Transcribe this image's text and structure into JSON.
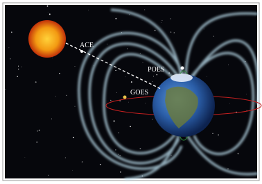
{
  "labels": {
    "ace": "ACE",
    "poes": "POES",
    "goes": "GOES"
  }
}
